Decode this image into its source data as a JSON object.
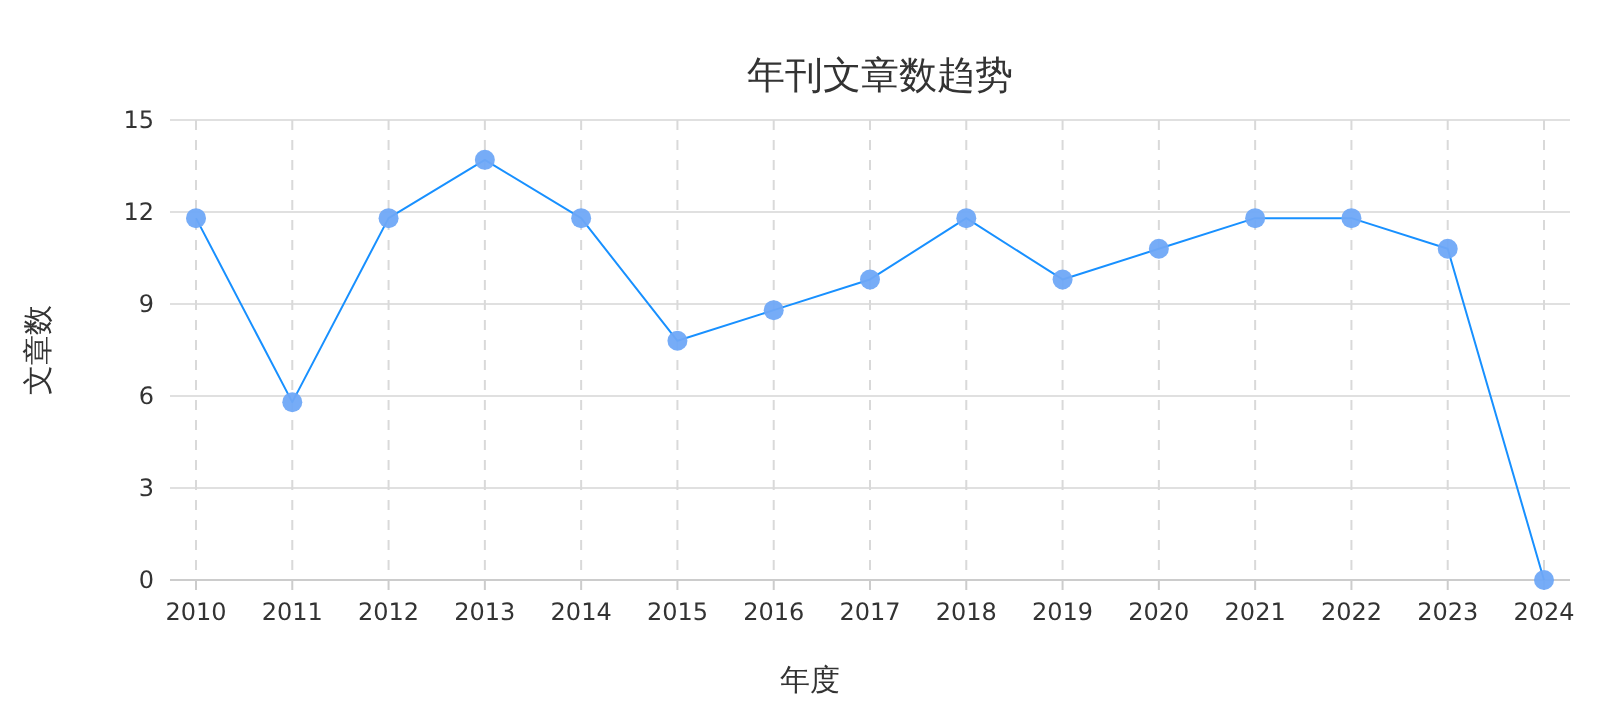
{
  "chart_data": {
    "type": "line",
    "title": "年刊文章数趋势",
    "xlabel": "年度",
    "ylabel": "文章数",
    "categories": [
      "2010",
      "2011",
      "2012",
      "2013",
      "2014",
      "2015",
      "2016",
      "2017",
      "2018",
      "2019",
      "2020",
      "2021",
      "2022",
      "2023",
      "2024"
    ],
    "series": [
      {
        "color": "#1890ff",
        "values": [
          11.8,
          5.8,
          11.8,
          13.7,
          11.8,
          7.8,
          8.8,
          9.8,
          11.8,
          9.8,
          10.8,
          11.8,
          11.8,
          10.8,
          0
        ]
      }
    ],
    "ylim": [
      0,
      15
    ],
    "yticks": [
      0,
      3,
      6,
      9,
      12,
      15
    ],
    "grid": true,
    "marker": "circle",
    "line_style": "solid"
  }
}
